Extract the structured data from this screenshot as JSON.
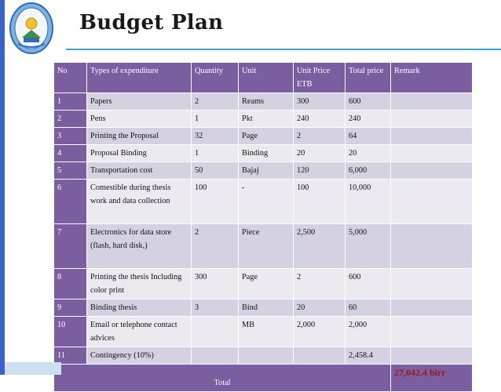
{
  "title": "Budget Plan",
  "headers": {
    "no": "No",
    "type": "Types of expenditure",
    "quantity": "Quantity",
    "unit": "Unit",
    "unit_price": "Unit Price ETB",
    "total_price": "Total price",
    "remark": "Remark"
  },
  "rows": [
    {
      "no": "1",
      "type": "Papers",
      "quantity": "2",
      "unit": "Reams",
      "unit_price": "300",
      "total": "600",
      "remark": ""
    },
    {
      "no": "2",
      "type": "Pens",
      "quantity": "1",
      "unit": "Pkt",
      "unit_price": "240",
      "total": "240",
      "remark": ""
    },
    {
      "no": "3",
      "type": "Printing the Proposal",
      "quantity": "32",
      "unit": "Page",
      "unit_price": "2",
      "total": "64",
      "remark": ""
    },
    {
      "no": "4",
      "type": "Proposal Binding",
      "quantity": "1",
      "unit": "Binding",
      "unit_price": "20",
      "total": "20",
      "remark": ""
    },
    {
      "no": "5",
      "type": "Transportation cost",
      "quantity": "50",
      "unit": "Bajaj",
      "unit_price": "120",
      "total": "6,000",
      "remark": ""
    },
    {
      "no": "6",
      "type": "Comestible during thesis work and data collection",
      "quantity": "100",
      "unit": "-",
      "unit_price": "100",
      "total": "10,000",
      "remark": ""
    },
    {
      "no": "7",
      "type": "Electronics for data store (flash, hard disk,)",
      "quantity": "2",
      "unit": "Piece",
      "unit_price": "2,500",
      "total": "5,000",
      "remark": ""
    },
    {
      "no": "8",
      "type": "Printing the thesis Including color print",
      "quantity": "300",
      "unit": "Page",
      "unit_price": "2",
      "total": "600",
      "remark": ""
    },
    {
      "no": "9",
      "type": "Binding thesis",
      "quantity": "3",
      "unit": "Bind",
      "unit_price": "20",
      "total": "60",
      "remark": ""
    },
    {
      "no": "10",
      "type": "Email or telephone contact advices",
      "quantity": "",
      "unit": "MB",
      "unit_price": "2,000",
      "total": "2,000",
      "remark": ""
    },
    {
      "no": "11",
      "type": "Contingency (10%)",
      "quantity": "",
      "unit": "",
      "unit_price": "",
      "total": "2,458.4",
      "remark": ""
    }
  ],
  "total_row": {
    "label": "Total",
    "grand_total": "27,042.4 birr"
  },
  "colors": {
    "header": "#7b5ea0",
    "row_dark": "#d6d1e2",
    "row_light": "#ece9f1",
    "grand_total": "#a31616",
    "accent_line": "#3aa6c9"
  },
  "logo": {
    "icon": "university-seal-icon"
  }
}
